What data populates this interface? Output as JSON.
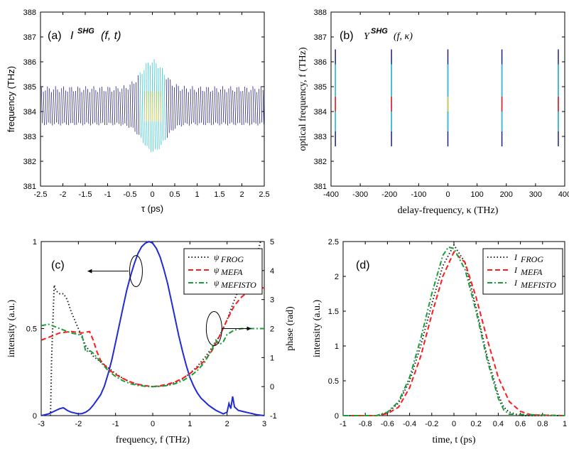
{
  "colors": {
    "blue": "#1f2bd6",
    "trace_dark": "#202080",
    "frog": "#222222",
    "mefa": "#ff1a1a",
    "mefisto": "#1a9e3a",
    "cyan": "#28c8d8",
    "yellow": "#e0d040"
  },
  "chart_data": [
    {
      "id": "a",
      "type": "heatmap",
      "panel_label": "(a)",
      "title_main": "I",
      "title_sup": "SHG",
      "title_args": "(f, t)",
      "xlabel": "τ (ps)",
      "ylabel": "frequency (THz)",
      "xlim": [
        -2.5,
        2.5
      ],
      "ylim": [
        381,
        388
      ],
      "xticks": [
        "-2.5",
        "-2",
        "-1.5",
        "-1",
        "-0.5",
        "0",
        "0.5",
        "1",
        "1.5",
        "2",
        "2.5"
      ],
      "yticks": [
        "381",
        "382",
        "383",
        "384",
        "385",
        "386",
        "387",
        "388"
      ],
      "center_frequency": 384.2,
      "background_halfwidth": 0.7,
      "peak_halfwidth": 1.8,
      "peak_center_time": 0,
      "peak_width_time": 0.35
    },
    {
      "id": "b",
      "type": "heatmap",
      "panel_label": "(b)",
      "title_main": "Y",
      "title_sup": "SHG",
      "title_args": "(f, κ)",
      "xlabel": "delay-frequency, κ (THz)",
      "ylabel": "optical frequency, f (THz)",
      "xlim": [
        -400,
        400
      ],
      "ylim": [
        381,
        388
      ],
      "xticks": [
        "-400",
        "-300",
        "-200",
        "-100",
        "0",
        "100",
        "200",
        "300",
        "400"
      ],
      "yticks": [
        "381",
        "382",
        "383",
        "384",
        "385",
        "386",
        "387",
        "388"
      ],
      "lines_x": [
        -385,
        -193,
        0,
        185,
        378
      ],
      "line_range": [
        382.6,
        386.5
      ]
    },
    {
      "id": "c",
      "type": "line",
      "panel_label": "(c)",
      "xlabel": "frequency, f (THz)",
      "ylabel": "intensity (a.u.)",
      "y2label": "phase (rad)",
      "xlim": [
        -3,
        3
      ],
      "ylim": [
        0,
        1
      ],
      "y2lim": [
        -1,
        5
      ],
      "xticks": [
        "-3",
        "-2",
        "-1",
        "0",
        "1",
        "2",
        "3"
      ],
      "yticks": [
        "0",
        "0.5",
        "1"
      ],
      "y2ticks": [
        "-1",
        "0",
        "1",
        "2",
        "3",
        "4",
        "5"
      ],
      "legend": [
        {
          "symbol": "ψ",
          "sub": "FROG"
        },
        {
          "symbol": "ψ",
          "sub": "MEFA"
        },
        {
          "symbol": "ψ",
          "sub": "MEFISTO"
        }
      ],
      "intensity": {
        "x": [
          -3,
          -2.9,
          -2.8,
          -2.7,
          -2.6,
          -2.5,
          -2.4,
          -2.3,
          -2.2,
          -2.1,
          -2.0,
          -1.9,
          -1.8,
          -1.7,
          -1.6,
          -1.5,
          -1.4,
          -1.3,
          -1.2,
          -1.1,
          -1.0,
          -0.9,
          -0.8,
          -0.7,
          -0.6,
          -0.5,
          -0.4,
          -0.3,
          -0.2,
          -0.1,
          0.0,
          0.1,
          0.2,
          0.3,
          0.4,
          0.5,
          0.6,
          0.7,
          0.8,
          0.9,
          1.0,
          1.1,
          1.2,
          1.3,
          1.4,
          1.5,
          1.6,
          1.7,
          1.8,
          1.9,
          2.0,
          2.05,
          2.1,
          2.15,
          2.2,
          2.3,
          2.4,
          2.5,
          2.6,
          2.7,
          2.8,
          3.0
        ],
        "y": [
          0.0,
          0.005,
          0.01,
          0.02,
          0.03,
          0.04,
          0.045,
          0.03,
          0.02,
          0.015,
          0.01,
          0.012,
          0.02,
          0.035,
          0.06,
          0.09,
          0.12,
          0.17,
          0.24,
          0.32,
          0.42,
          0.52,
          0.62,
          0.72,
          0.8,
          0.87,
          0.93,
          0.97,
          0.99,
          1.0,
          0.99,
          0.96,
          0.91,
          0.84,
          0.76,
          0.66,
          0.56,
          0.46,
          0.37,
          0.29,
          0.22,
          0.17,
          0.13,
          0.1,
          0.08,
          0.06,
          0.045,
          0.03,
          0.02,
          0.01,
          0.02,
          0.07,
          0.04,
          0.11,
          0.05,
          0.03,
          0.025,
          0.02,
          0.015,
          0.01,
          0.005,
          0.0
        ]
      },
      "series": [
        {
          "key": "frog",
          "x": [
            -2.75,
            -2.72,
            -2.65,
            -2.6,
            -2.5,
            -2.4,
            -2.3,
            -2.2,
            -2.0,
            -1.8,
            -1.6,
            -1.4,
            -1.2,
            -1.0,
            -0.8,
            -0.6,
            -0.4,
            -0.2,
            0.0,
            0.2,
            0.4,
            0.6,
            0.8,
            1.0,
            1.2,
            1.4,
            1.6,
            1.8,
            2.0,
            2.2,
            2.4,
            2.6,
            2.8,
            2.9
          ],
          "y": [
            -1.0,
            1.0,
            3.5,
            3.3,
            3.2,
            3.2,
            3.0,
            2.6,
            2.0,
            1.4,
            1.05,
            0.85,
            0.65,
            0.45,
            0.28,
            0.15,
            0.07,
            0.02,
            0.0,
            0.02,
            0.06,
            0.14,
            0.27,
            0.45,
            0.7,
            1.0,
            1.35,
            1.75,
            2.3,
            3.0,
            3.6,
            4.1,
            4.5,
            5.0
          ]
        },
        {
          "key": "mefa",
          "x": [
            -3.0,
            -2.8,
            -2.5,
            -2.2,
            -1.9,
            -1.7,
            -1.6,
            -1.5,
            -1.4,
            -1.2,
            -1.0,
            -0.8,
            -0.6,
            -0.4,
            -0.2,
            0.0,
            0.2,
            0.4,
            0.6,
            0.8,
            1.0,
            1.2,
            1.4,
            1.6,
            1.8,
            2.0,
            2.2,
            2.4,
            2.6,
            2.8,
            3.0
          ],
          "y": [
            1.6,
            1.7,
            1.85,
            1.9,
            1.85,
            1.9,
            1.6,
            1.2,
            0.9,
            0.6,
            0.42,
            0.28,
            0.16,
            0.08,
            0.03,
            0.0,
            0.03,
            0.08,
            0.16,
            0.28,
            0.45,
            0.65,
            0.9,
            1.25,
            1.75,
            2.3,
            2.8,
            3.1,
            3.3,
            3.4,
            3.4
          ]
        },
        {
          "key": "mefisto",
          "x": [
            -3.0,
            -2.8,
            -2.5,
            -2.2,
            -2.0,
            -1.9,
            -1.8,
            -1.7,
            -1.6,
            -1.5,
            -1.4,
            -1.2,
            -1.0,
            -0.8,
            -0.6,
            -0.4,
            -0.2,
            0.0,
            0.2,
            0.4,
            0.6,
            0.8,
            1.0,
            1.2,
            1.4,
            1.6,
            1.7,
            1.8,
            1.9,
            2.0,
            2.2,
            2.4,
            2.6,
            2.8,
            3.0
          ],
          "y": [
            2.1,
            2.15,
            2.0,
            1.85,
            1.8,
            1.75,
            1.2,
            1.25,
            1.15,
            1.0,
            0.85,
            0.55,
            0.35,
            0.2,
            0.1,
            0.04,
            0.01,
            0.0,
            0.01,
            0.04,
            0.1,
            0.2,
            0.35,
            0.55,
            0.85,
            1.3,
            1.6,
            1.45,
            1.55,
            1.8,
            1.95,
            2.0,
            2.0,
            2.0,
            2.0
          ]
        }
      ]
    },
    {
      "id": "d",
      "type": "line",
      "panel_label": "(d)",
      "xlabel": "time, t (ps)",
      "ylabel": "intensity (a.u.)",
      "xlim": [
        -1,
        1
      ],
      "ylim": [
        0,
        2.5
      ],
      "xticks": [
        "-1",
        "-0.8",
        "-0.6",
        "-0.4",
        "-0.2",
        "0",
        "0.2",
        "0.4",
        "0.6",
        "0.8",
        "1"
      ],
      "yticks": [
        "0",
        "0.5",
        "1",
        "1.5",
        "2",
        "2.5"
      ],
      "legend": [
        {
          "symbol": "I",
          "sub": "FROG"
        },
        {
          "symbol": "I",
          "sub": "MEFA"
        },
        {
          "symbol": "I",
          "sub": "MEFISTO"
        }
      ],
      "series": [
        {
          "key": "frog",
          "x": [
            -1.0,
            -0.7,
            -0.6,
            -0.5,
            -0.4,
            -0.3,
            -0.2,
            -0.1,
            0.0,
            0.1,
            0.2,
            0.3,
            0.4,
            0.45,
            0.5,
            0.6,
            1.0
          ],
          "y": [
            0.0,
            0.0,
            0.04,
            0.18,
            0.5,
            1.0,
            1.6,
            2.15,
            2.45,
            2.2,
            1.55,
            0.85,
            0.3,
            0.12,
            0.05,
            0.0,
            0.0
          ]
        },
        {
          "key": "mefa",
          "x": [
            -1.0,
            -0.7,
            -0.6,
            -0.5,
            -0.4,
            -0.3,
            -0.2,
            -0.1,
            0.0,
            0.1,
            0.2,
            0.3,
            0.4,
            0.5,
            0.6,
            0.7,
            1.0
          ],
          "y": [
            0.0,
            0.0,
            0.03,
            0.12,
            0.4,
            0.85,
            1.45,
            2.0,
            2.35,
            2.2,
            1.7,
            1.1,
            0.55,
            0.2,
            0.06,
            0.01,
            0.0
          ]
        },
        {
          "key": "mefisto",
          "x": [
            -1.0,
            -0.7,
            -0.6,
            -0.5,
            -0.4,
            -0.3,
            -0.2,
            -0.1,
            -0.05,
            0.0,
            0.1,
            0.2,
            0.3,
            0.4,
            0.45,
            0.5,
            1.0
          ],
          "y": [
            0.0,
            0.0,
            0.05,
            0.2,
            0.55,
            1.1,
            1.75,
            2.3,
            2.42,
            2.4,
            2.1,
            1.5,
            0.8,
            0.25,
            0.08,
            0.02,
            0.0
          ]
        }
      ]
    }
  ]
}
